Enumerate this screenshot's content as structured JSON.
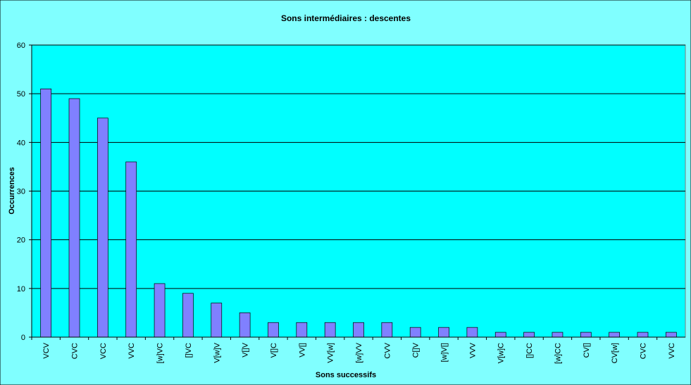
{
  "chart_data": {
    "type": "bar",
    "title": "Sons intermédiaires : descentes",
    "xlabel": "Sons successifs",
    "ylabel": "Occurrences",
    "categories": [
      "VCV",
      "CVC",
      "VCC",
      "VVC",
      "[w]VC",
      "[]VC",
      "V[w]V",
      "V[]V",
      "V[]C",
      "VV[]",
      "VV[w]",
      "[w]VV",
      "CVV",
      "C[]V",
      "[w]V[]",
      "VVV",
      "V[w]C",
      "[]CC",
      "[w]CC",
      "CV[]",
      "CV[w]",
      "CVC",
      "VVC"
    ],
    "values": [
      51,
      49,
      45,
      36,
      11,
      9,
      7,
      5,
      3,
      3,
      3,
      3,
      3,
      2,
      2,
      2,
      1,
      1,
      1,
      1,
      1,
      1,
      1
    ],
    "color": "#8080ff",
    "ylim": [
      0,
      60
    ],
    "yticks": [
      0,
      10,
      20,
      30,
      40,
      50,
      60
    ],
    "grid": true
  }
}
